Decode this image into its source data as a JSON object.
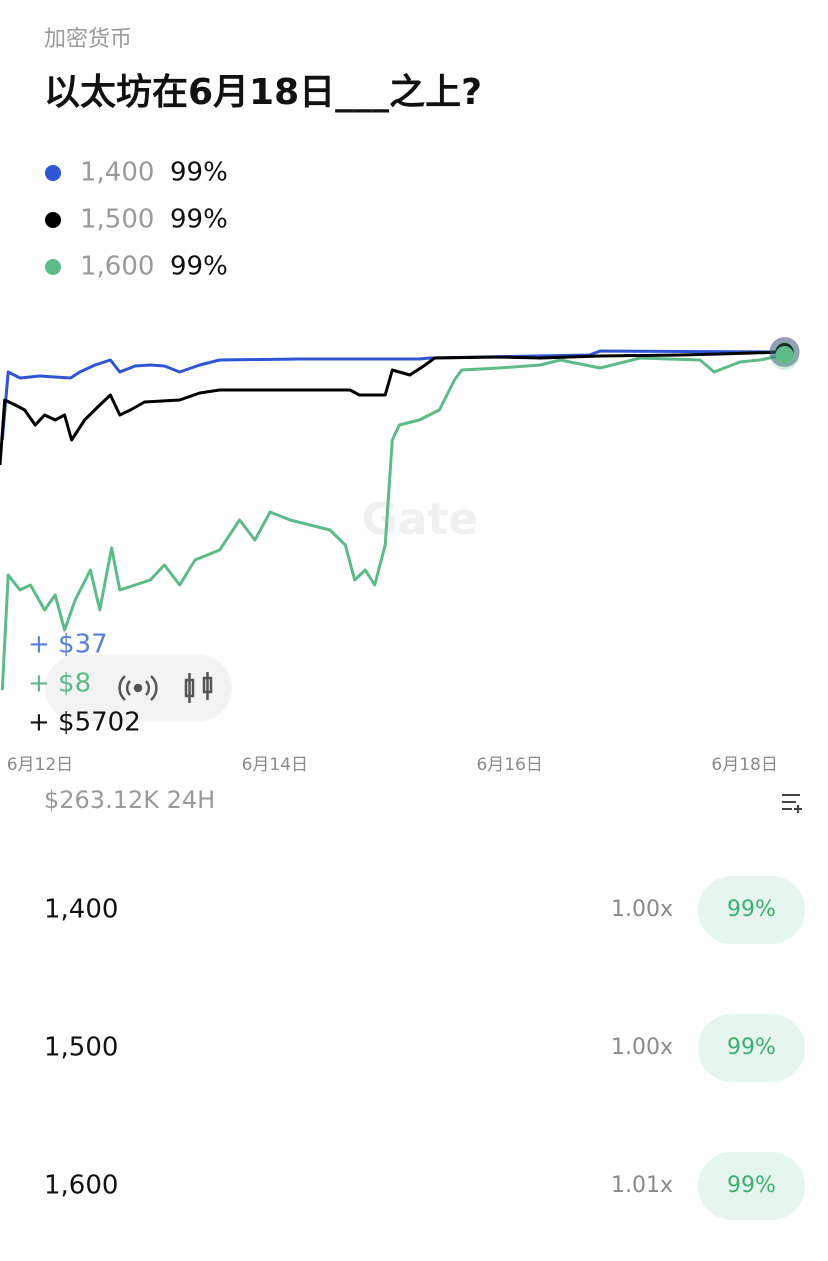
{
  "header": {
    "category": "加密货币",
    "title": "以太坊在6月18日___之上?"
  },
  "chart_data": {
    "type": "line",
    "series": [
      {
        "name": "1,400",
        "current": "99%",
        "color": "#2f55d4",
        "x": [
          11.68,
          11.73,
          11.83,
          12,
          12.26,
          12.34,
          12.47,
          12.6,
          12.68,
          12.81,
          12.94,
          13.06,
          13.19,
          13.36,
          13.53,
          14.21,
          15.23,
          15.32,
          16.68,
          16.77,
          18.34
        ],
        "values": [
          90.5,
          97.3,
          96.7,
          96.9,
          96.7,
          97.3,
          98,
          98.5,
          97.3,
          97.9,
          98,
          97.9,
          97.3,
          98,
          98.5,
          98.6,
          98.6,
          98.7,
          99,
          99.4,
          99.3
        ]
      },
      {
        "name": "1,500",
        "current": "99%",
        "color": "#000000",
        "x": [
          11.66,
          11.7,
          11.79,
          11.87,
          11.96,
          12.04,
          12.13,
          12.21,
          12.27,
          12.38,
          12.51,
          12.6,
          12.68,
          12.77,
          12.89,
          13.19,
          13.36,
          13.53,
          13.79,
          14.21,
          14.64,
          14.72,
          14.94,
          15,
          15.15,
          15.28,
          15.36,
          15.91,
          16.26,
          16.77,
          17.45,
          17.79,
          18.34
        ],
        "values": [
          88,
          94.5,
          94,
          93.5,
          92,
          93,
          92.5,
          93,
          90.5,
          92.5,
          94,
          95,
          93,
          93.5,
          94.3,
          94.5,
          95.2,
          95.5,
          95.5,
          95.5,
          95.5,
          95,
          95,
          97.5,
          97,
          98,
          98.7,
          98.8,
          98.7,
          98.9,
          99,
          99.1,
          99.3
        ]
      },
      {
        "name": "1,600",
        "current": "99%",
        "color": "#5dbb8a",
        "x": [
          11.68,
          11.73,
          11.83,
          11.92,
          12.04,
          12.13,
          12.21,
          12.3,
          12.43,
          12.51,
          12.61,
          12.68,
          12.81,
          12.94,
          13.06,
          13.19,
          13.32,
          13.53,
          13.7,
          13.83,
          13.96,
          14.13,
          14.3,
          14.47,
          14.6,
          14.68,
          14.77,
          14.85,
          14.94,
          15,
          15.06,
          15.23,
          15.4,
          15.53,
          15.59,
          15.91,
          16.26,
          16.43,
          16.77,
          17.11,
          17.62,
          17.74,
          17.96,
          18.13,
          18.34
        ],
        "values": [
          65.5,
          77,
          75.5,
          76,
          73.5,
          75,
          71.5,
          74.5,
          77.5,
          73.5,
          79.7,
          75.5,
          76,
          76.5,
          78,
          76,
          78.5,
          79.5,
          82.5,
          80.5,
          83.3,
          82.5,
          82,
          81.5,
          80,
          76.5,
          77.5,
          76,
          80,
          90.5,
          92,
          92.5,
          93.5,
          96.5,
          97.5,
          97.7,
          98,
          98.5,
          97.7,
          98.7,
          98.5,
          97.3,
          98.3,
          98.5,
          99
        ]
      }
    ],
    "xlim": [
      11.66,
      18.71
    ],
    "xticks": [
      {
        "value": 12,
        "label": "6月12日"
      },
      {
        "value": 14,
        "label": "6月14日"
      },
      {
        "value": 16,
        "label": "6月16日"
      },
      {
        "value": 18,
        "label": "6月18日"
      }
    ],
    "ylim": [
      60,
      100
    ],
    "annotations": [
      {
        "text": "+ $37",
        "color": "#5b7fd8"
      },
      {
        "text": "+ $8",
        "color": "#5dbb8a"
      },
      {
        "text": "+ $5702",
        "color": "#111111"
      }
    ],
    "watermark": "Gate"
  },
  "volume": "$263.12K 24H",
  "outcomes": [
    {
      "name": "1,400",
      "multiplier": "1.00x",
      "chance": "99%"
    },
    {
      "name": "1,500",
      "multiplier": "1.00x",
      "chance": "99%"
    },
    {
      "name": "1,600",
      "multiplier": "1.01x",
      "chance": "99%"
    }
  ]
}
